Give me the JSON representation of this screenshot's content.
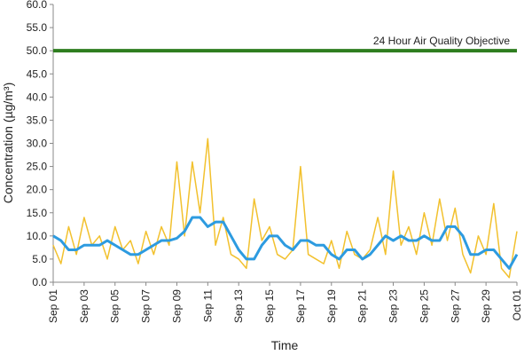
{
  "chart_data": {
    "type": "line",
    "x_label": "Time",
    "y_label": "Concentration (µg/m³)",
    "x": [
      0,
      0.5,
      1,
      1.5,
      2,
      2.5,
      3,
      3.5,
      4,
      4.5,
      5,
      5.5,
      6,
      6.5,
      7,
      7.5,
      8,
      8.5,
      9,
      9.5,
      10,
      10.5,
      11,
      11.5,
      12,
      12.5,
      13,
      13.5,
      14,
      14.5,
      15,
      15.5,
      16,
      16.5,
      17,
      17.5,
      18,
      18.5,
      19,
      19.5,
      20,
      20.5,
      21,
      21.5,
      22,
      22.5,
      23,
      23.5,
      24,
      24.5,
      25,
      25.5,
      26,
      26.5,
      27,
      27.5,
      28,
      28.5,
      29,
      29.5,
      30
    ],
    "series": [
      {
        "color": "#f2c12e",
        "width": 1.5,
        "values": [
          8,
          4,
          12,
          6,
          14,
          8,
          10,
          5,
          12,
          7,
          9,
          4,
          11,
          6,
          12,
          8,
          26,
          10,
          26,
          15,
          31,
          8,
          14,
          6,
          5,
          3,
          18,
          9,
          12,
          6,
          5,
          7,
          25,
          6,
          5,
          4,
          9,
          3,
          11,
          6,
          5,
          7,
          14,
          6,
          24,
          8,
          12,
          6,
          15,
          8,
          18,
          9,
          16,
          6,
          2,
          10,
          6,
          17,
          3,
          1,
          11
        ]
      },
      {
        "color": "#2d9be0",
        "width": 3,
        "values": [
          10,
          9,
          7,
          7,
          8,
          8,
          8,
          9,
          8,
          7,
          6,
          6,
          7,
          8,
          9,
          9,
          9.5,
          11,
          14,
          14,
          12,
          13,
          13,
          10,
          7,
          5,
          5,
          8,
          10,
          10,
          8,
          7,
          9,
          9,
          8,
          8,
          6,
          5,
          7,
          7,
          5,
          6,
          8,
          10,
          9,
          10,
          9,
          9,
          10,
          9,
          9,
          12,
          12,
          10,
          6,
          6,
          7,
          7,
          5,
          3,
          6
        ]
      }
    ],
    "reference_line": {
      "value": 50,
      "label": "24 Hour Air Quality Objective",
      "color": "#2e7d1f"
    },
    "xlim": [
      0,
      30
    ],
    "xticks": [
      {
        "value": 0,
        "label": "Sep 01"
      },
      {
        "value": 2,
        "label": "Sep 03"
      },
      {
        "value": 4,
        "label": "Sep 05"
      },
      {
        "value": 6,
        "label": "Sep 07"
      },
      {
        "value": 8,
        "label": "Sep 09"
      },
      {
        "value": 10,
        "label": "Sep 11"
      },
      {
        "value": 12,
        "label": "Sep 13"
      },
      {
        "value": 14,
        "label": "Sep 15"
      },
      {
        "value": 16,
        "label": "Sep 17"
      },
      {
        "value": 18,
        "label": "Sep 19"
      },
      {
        "value": 20,
        "label": "Sep 21"
      },
      {
        "value": 22,
        "label": "Sep 23"
      },
      {
        "value": 24,
        "label": "Sep 25"
      },
      {
        "value": 26,
        "label": "Sep 27"
      },
      {
        "value": 28,
        "label": "Sep 29"
      },
      {
        "value": 30,
        "label": "Oct 01"
      }
    ],
    "ylim": [
      0,
      60
    ],
    "yticks": [
      {
        "value": 0,
        "label": "0.0"
      },
      {
        "value": 5,
        "label": "5.0"
      },
      {
        "value": 10,
        "label": "10.0"
      },
      {
        "value": 15,
        "label": "15.0"
      },
      {
        "value": 20,
        "label": "20.0"
      },
      {
        "value": 25,
        "label": "25.0"
      },
      {
        "value": 30,
        "label": "30.0"
      },
      {
        "value": 35,
        "label": "35.0"
      },
      {
        "value": 40,
        "label": "40.0"
      },
      {
        "value": 45,
        "label": "45.0"
      },
      {
        "value": 50,
        "label": "50.0"
      },
      {
        "value": 55,
        "label": "55.0"
      },
      {
        "value": 60,
        "label": "60.0"
      }
    ]
  }
}
